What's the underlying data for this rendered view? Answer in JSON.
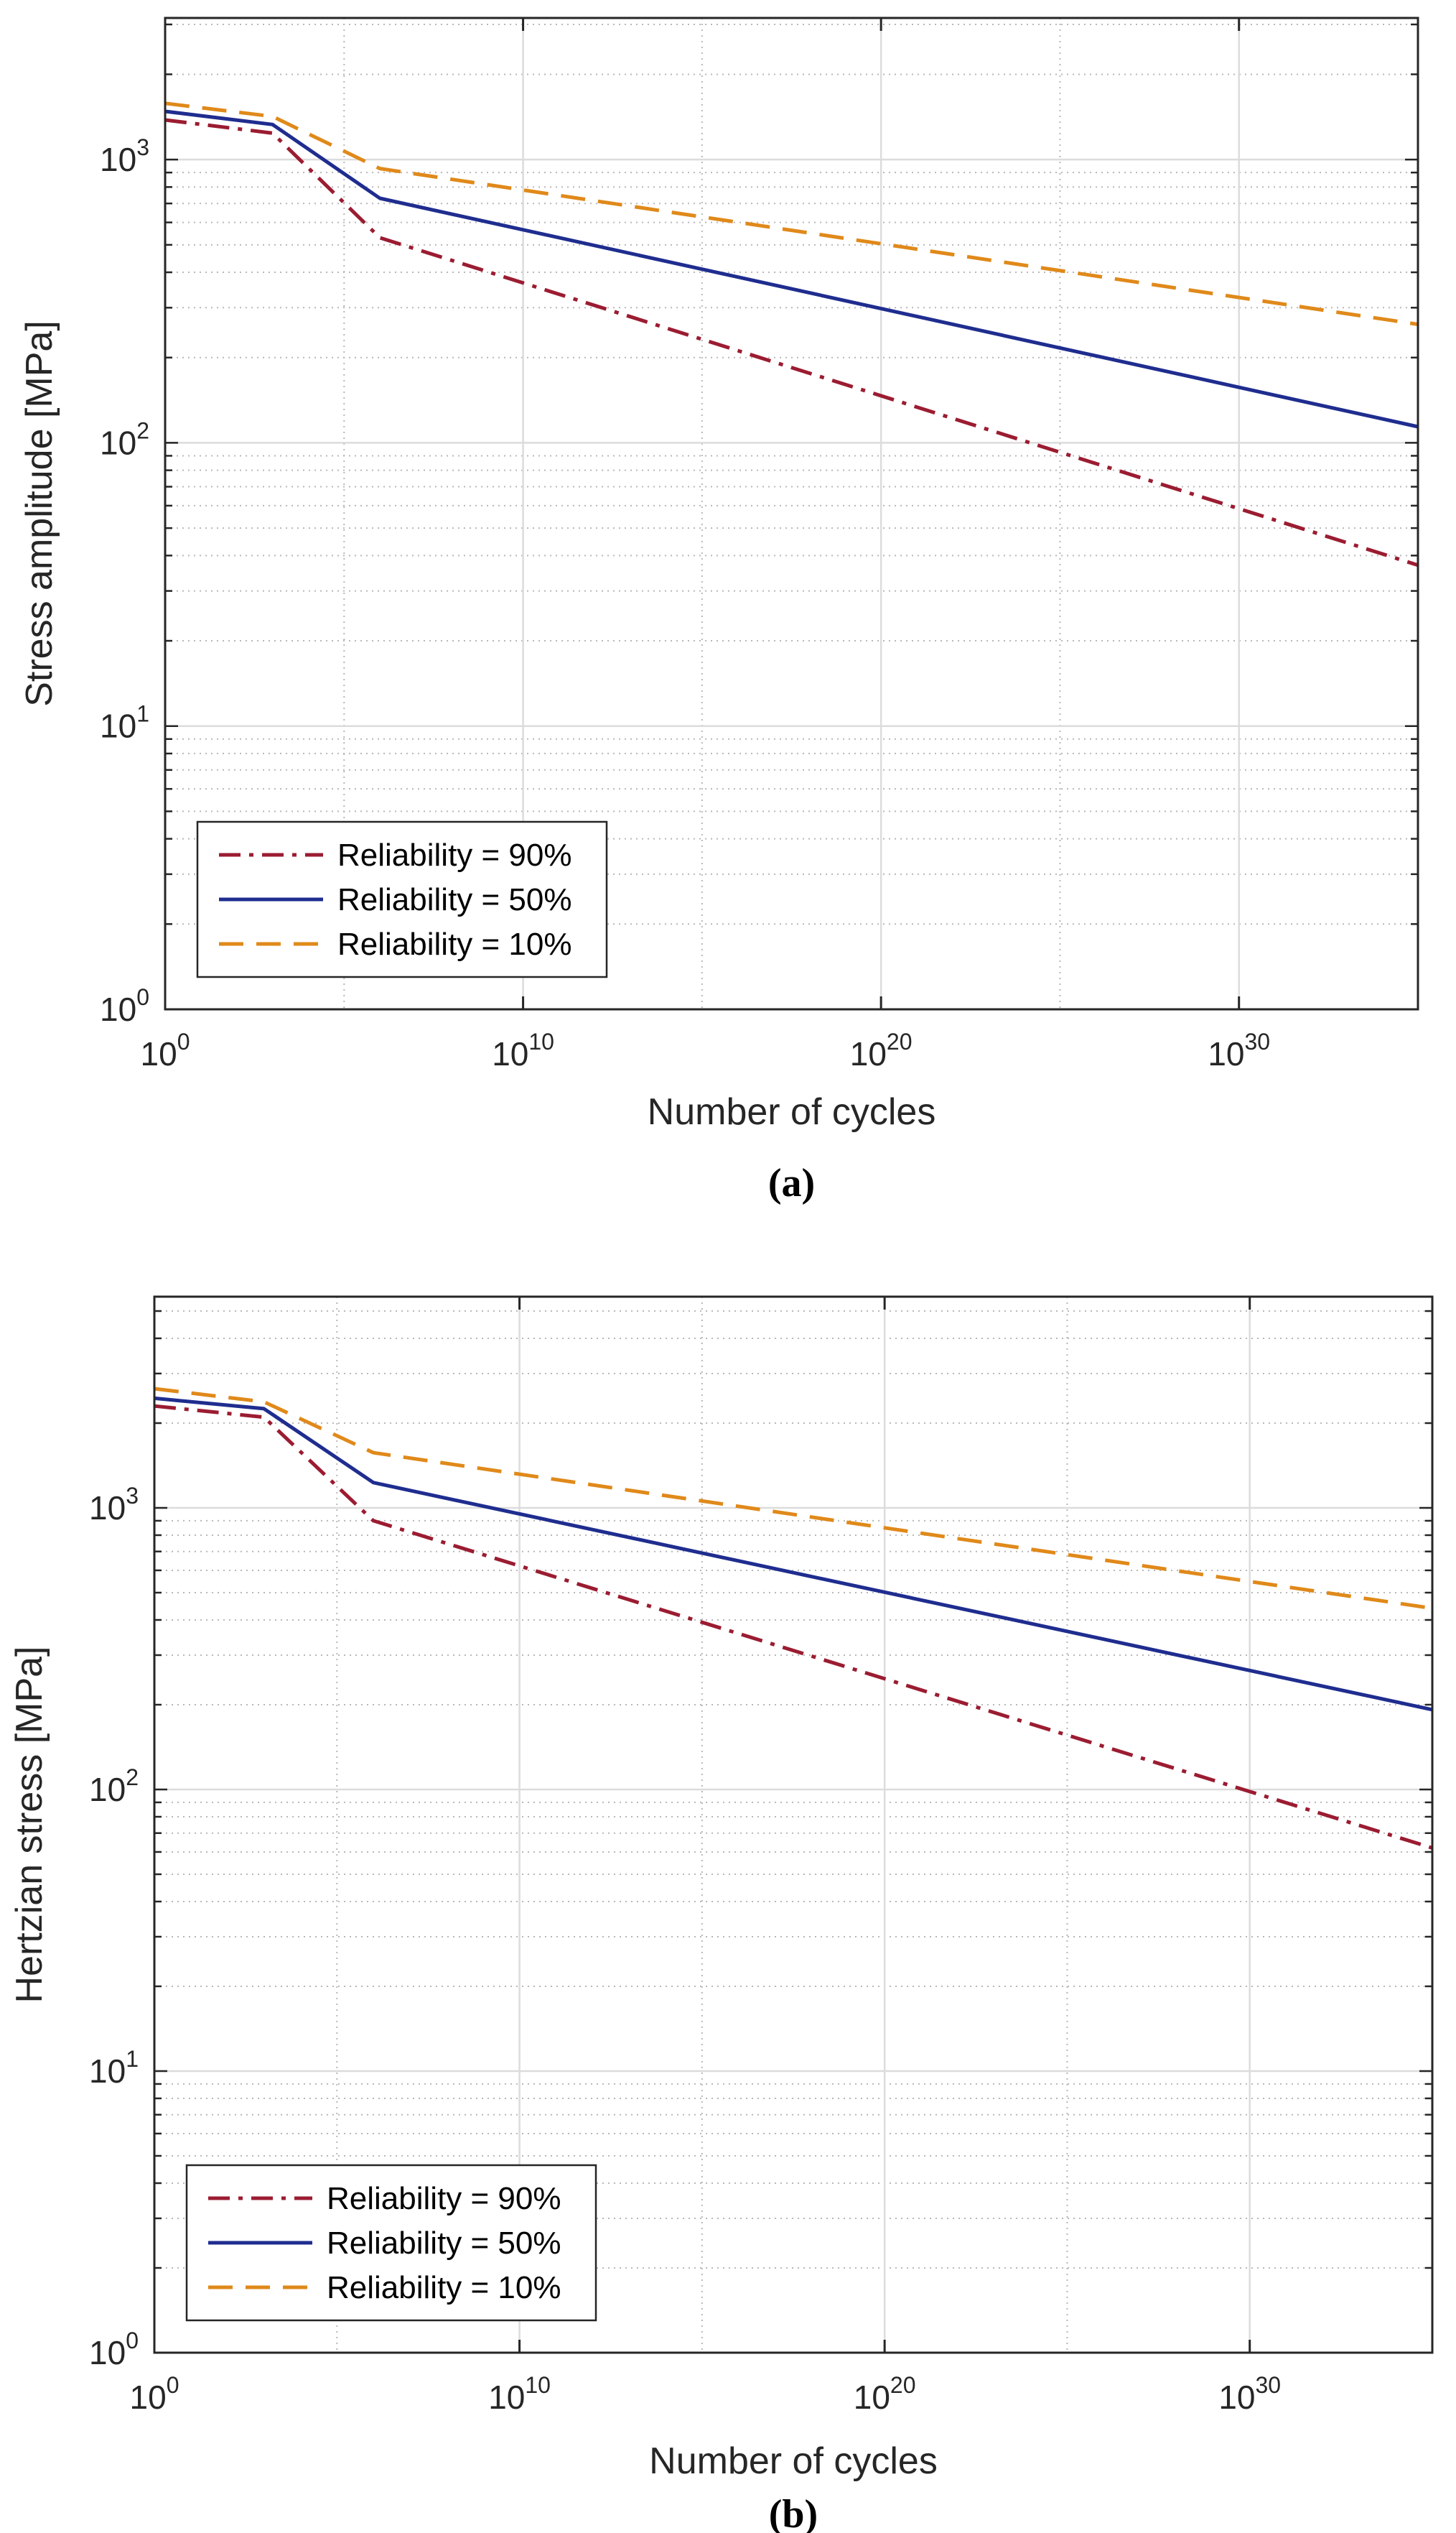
{
  "chart_data": [
    {
      "type": "line",
      "id": "a",
      "caption": "(a)",
      "xlabel": "Number of cycles",
      "ylabel": "Stress amplitude [MPa]",
      "xscale": "log",
      "yscale": "log",
      "xlim_exponent": [
        0,
        35
      ],
      "ylim_exponent": [
        0,
        3.5
      ],
      "xticks": [
        {
          "base": "10",
          "exp": "0",
          "value_exponent": 0
        },
        {
          "base": "10",
          "exp": "10",
          "value_exponent": 10
        },
        {
          "base": "10",
          "exp": "20",
          "value_exponent": 20
        },
        {
          "base": "10",
          "exp": "30",
          "value_exponent": 30
        }
      ],
      "yticks": [
        {
          "base": "10",
          "exp": "0",
          "value_exponent": 0
        },
        {
          "base": "10",
          "exp": "1",
          "value_exponent": 1
        },
        {
          "base": "10",
          "exp": "2",
          "value_exponent": 2
        },
        {
          "base": "10",
          "exp": "3",
          "value_exponent": 3
        }
      ],
      "grid": true,
      "legend_position": "bottom-left",
      "series": [
        {
          "name": "Reliability = 90%",
          "color": "#9b1c31",
          "style": "dashdot",
          "x_exponent": [
            0,
            3,
            6,
            35
          ],
          "y": [
            1380,
            1240,
            530,
            37
          ]
        },
        {
          "name": "Reliability = 50%",
          "color": "#1f2d8f",
          "style": "solid",
          "x_exponent": [
            0,
            3,
            6,
            35
          ],
          "y": [
            1480,
            1330,
            730,
            114
          ]
        },
        {
          "name": "Reliability = 10%",
          "color": "#e0891a",
          "style": "dashed",
          "x_exponent": [
            0,
            3,
            6,
            35
          ],
          "y": [
            1580,
            1420,
            930,
            262
          ]
        }
      ]
    },
    {
      "type": "line",
      "id": "b",
      "caption": "(b)",
      "xlabel": "Number of cycles",
      "ylabel": "Hertzian stress [MPa]",
      "xscale": "log",
      "yscale": "log",
      "xlim_exponent": [
        0,
        35
      ],
      "ylim_exponent": [
        0,
        3.75
      ],
      "xticks": [
        {
          "base": "10",
          "exp": "0",
          "value_exponent": 0
        },
        {
          "base": "10",
          "exp": "10",
          "value_exponent": 10
        },
        {
          "base": "10",
          "exp": "20",
          "value_exponent": 20
        },
        {
          "base": "10",
          "exp": "30",
          "value_exponent": 30
        }
      ],
      "yticks": [
        {
          "base": "10",
          "exp": "0",
          "value_exponent": 0
        },
        {
          "base": "10",
          "exp": "1",
          "value_exponent": 1
        },
        {
          "base": "10",
          "exp": "2",
          "value_exponent": 2
        },
        {
          "base": "10",
          "exp": "3",
          "value_exponent": 3
        }
      ],
      "grid": true,
      "legend_position": "bottom-left",
      "series": [
        {
          "name": "Reliability = 90%",
          "color": "#9b1c31",
          "style": "dashdot",
          "x_exponent": [
            0,
            3,
            6,
            35
          ],
          "y": [
            2300,
            2100,
            900,
            62
          ]
        },
        {
          "name": "Reliability = 50%",
          "color": "#1f2d8f",
          "style": "solid",
          "x_exponent": [
            0,
            3,
            6,
            35
          ],
          "y": [
            2450,
            2250,
            1230,
            192
          ]
        },
        {
          "name": "Reliability = 10%",
          "color": "#e0891a",
          "style": "dashed",
          "x_exponent": [
            0,
            3,
            6,
            35
          ],
          "y": [
            2650,
            2380,
            1570,
            440
          ]
        }
      ]
    }
  ]
}
